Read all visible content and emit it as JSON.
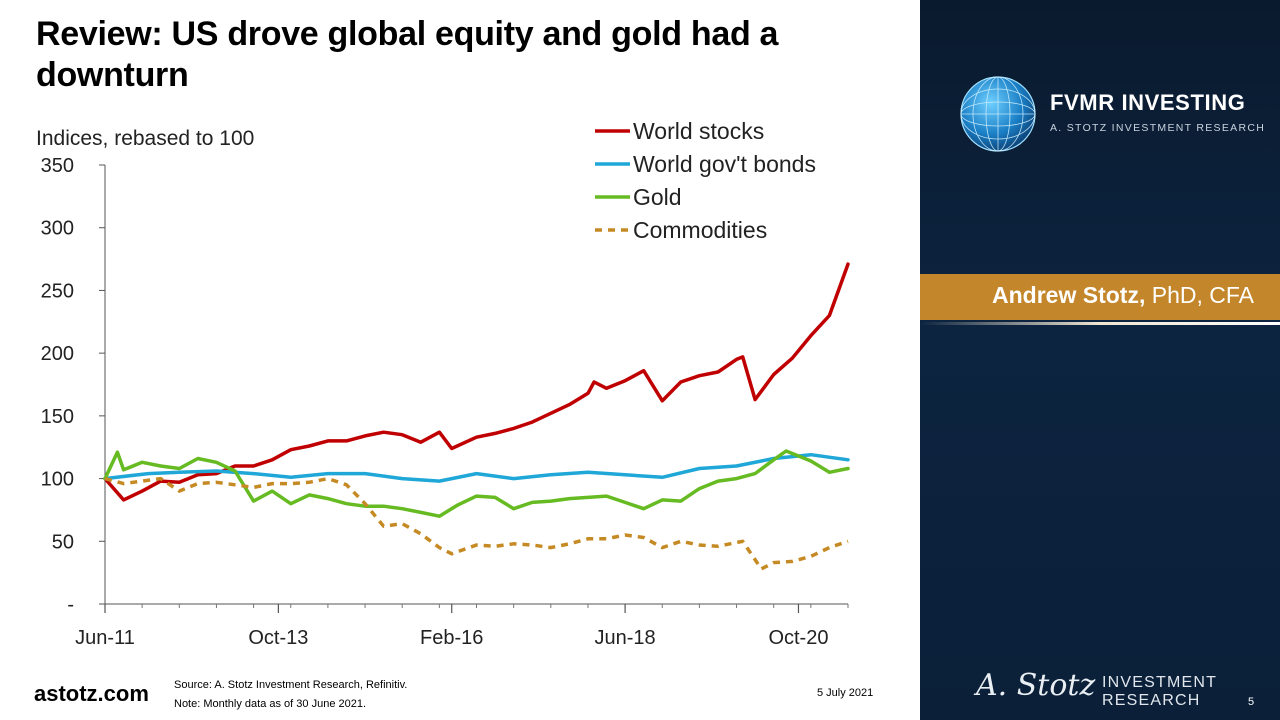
{
  "slide": {
    "title": "Review: US drove global equity and gold had a downturn",
    "website": "astotz.com",
    "source": "Source: A. Stotz Investment Research, Refinitiv.",
    "note": "Note: Monthly data as of 30 June 2021.",
    "date": "5 July 2021",
    "page_number": "5"
  },
  "sidebar": {
    "brand_name": "FVMR INVESTING",
    "brand_sub": "A. STOTZ INVESTMENT RESEARCH",
    "presenter_name": "Andrew Stotz,",
    "presenter_credentials": " PhD, CFA",
    "signature": "A. Stotz",
    "research_line1": "INVESTMENT",
    "research_line2": "RESEARCH"
  },
  "colors": {
    "world_stocks": "#c00000",
    "world_bonds": "#1fa7d8",
    "gold": "#66bb22",
    "commodities": "#c58a23",
    "presenter_band": "#c3862a",
    "sidebar_bg": "#0b1f38"
  },
  "chart_data": {
    "type": "line",
    "ylabel": "Indices, rebased to 100",
    "ylim": [
      0,
      350
    ],
    "yticks": [
      "-",
      "50",
      "100",
      "150",
      "200",
      "250",
      "300",
      "350"
    ],
    "x_start": "2011-06",
    "x_end": "2021-06",
    "xticks": [
      "Jun-11",
      "Oct-13",
      "Feb-16",
      "Jun-18",
      "Oct-20"
    ],
    "legend_position": "top-right",
    "grid": false,
    "series": [
      {
        "name": "World stocks",
        "style": "solid",
        "points": [
          [
            "2011-06",
            100
          ],
          [
            "2011-09",
            83
          ],
          [
            "2011-12",
            90
          ],
          [
            "2012-03",
            98
          ],
          [
            "2012-06",
            97
          ],
          [
            "2012-09",
            103
          ],
          [
            "2012-12",
            104
          ],
          [
            "2013-03",
            110
          ],
          [
            "2013-06",
            110
          ],
          [
            "2013-09",
            115
          ],
          [
            "2013-12",
            123
          ],
          [
            "2014-03",
            126
          ],
          [
            "2014-06",
            130
          ],
          [
            "2014-09",
            130
          ],
          [
            "2014-12",
            134
          ],
          [
            "2015-03",
            137
          ],
          [
            "2015-06",
            135
          ],
          [
            "2015-09",
            129
          ],
          [
            "2015-12",
            137
          ],
          [
            "2016-02",
            124
          ],
          [
            "2016-06",
            133
          ],
          [
            "2016-09",
            136
          ],
          [
            "2016-12",
            140
          ],
          [
            "2017-03",
            145
          ],
          [
            "2017-06",
            152
          ],
          [
            "2017-09",
            159
          ],
          [
            "2017-12",
            168
          ],
          [
            "2018-01",
            177
          ],
          [
            "2018-03",
            172
          ],
          [
            "2018-06",
            178
          ],
          [
            "2018-09",
            186
          ],
          [
            "2018-12",
            162
          ],
          [
            "2019-03",
            177
          ],
          [
            "2019-06",
            182
          ],
          [
            "2019-09",
            185
          ],
          [
            "2019-12",
            195
          ],
          [
            "2020-01",
            197
          ],
          [
            "2020-03",
            163
          ],
          [
            "2020-06",
            183
          ],
          [
            "2020-09",
            196
          ],
          [
            "2020-12",
            214
          ],
          [
            "2021-03",
            230
          ],
          [
            "2021-06",
            271
          ]
        ]
      },
      {
        "name": "World gov't bonds",
        "style": "solid",
        "points": [
          [
            "2011-06",
            100
          ],
          [
            "2012-01",
            104
          ],
          [
            "2012-06",
            105
          ],
          [
            "2012-12",
            106
          ],
          [
            "2013-06",
            104
          ],
          [
            "2013-12",
            101
          ],
          [
            "2014-06",
            104
          ],
          [
            "2014-12",
            104
          ],
          [
            "2015-06",
            100
          ],
          [
            "2015-12",
            98
          ],
          [
            "2016-06",
            104
          ],
          [
            "2016-12",
            100
          ],
          [
            "2017-06",
            103
          ],
          [
            "2017-12",
            105
          ],
          [
            "2018-06",
            103
          ],
          [
            "2018-12",
            101
          ],
          [
            "2019-06",
            108
          ],
          [
            "2019-12",
            110
          ],
          [
            "2020-06",
            116
          ],
          [
            "2020-12",
            119
          ],
          [
            "2021-06",
            115
          ]
        ]
      },
      {
        "name": "Gold",
        "style": "solid",
        "points": [
          [
            "2011-06",
            100
          ],
          [
            "2011-08",
            121
          ],
          [
            "2011-09",
            107
          ],
          [
            "2011-12",
            113
          ],
          [
            "2012-03",
            110
          ],
          [
            "2012-06",
            108
          ],
          [
            "2012-09",
            116
          ],
          [
            "2012-12",
            113
          ],
          [
            "2013-03",
            106
          ],
          [
            "2013-06",
            82
          ],
          [
            "2013-09",
            90
          ],
          [
            "2013-12",
            80
          ],
          [
            "2014-03",
            87
          ],
          [
            "2014-06",
            84
          ],
          [
            "2014-09",
            80
          ],
          [
            "2014-12",
            78
          ],
          [
            "2015-03",
            78
          ],
          [
            "2015-06",
            76
          ],
          [
            "2015-09",
            73
          ],
          [
            "2015-12",
            70
          ],
          [
            "2016-03",
            79
          ],
          [
            "2016-06",
            86
          ],
          [
            "2016-09",
            85
          ],
          [
            "2016-12",
            76
          ],
          [
            "2017-03",
            81
          ],
          [
            "2017-06",
            82
          ],
          [
            "2017-09",
            84
          ],
          [
            "2017-12",
            85
          ],
          [
            "2018-03",
            86
          ],
          [
            "2018-06",
            81
          ],
          [
            "2018-09",
            76
          ],
          [
            "2018-12",
            83
          ],
          [
            "2019-03",
            82
          ],
          [
            "2019-06",
            92
          ],
          [
            "2019-09",
            98
          ],
          [
            "2019-12",
            100
          ],
          [
            "2020-03",
            104
          ],
          [
            "2020-06",
            115
          ],
          [
            "2020-08",
            122
          ],
          [
            "2020-12",
            114
          ],
          [
            "2021-03",
            105
          ],
          [
            "2021-06",
            108
          ]
        ]
      },
      {
        "name": "Commodities",
        "style": "dashed",
        "points": [
          [
            "2011-06",
            100
          ],
          [
            "2011-09",
            96
          ],
          [
            "2011-12",
            98
          ],
          [
            "2012-03",
            100
          ],
          [
            "2012-06",
            90
          ],
          [
            "2012-09",
            96
          ],
          [
            "2012-12",
            97
          ],
          [
            "2013-03",
            95
          ],
          [
            "2013-06",
            93
          ],
          [
            "2013-09",
            96
          ],
          [
            "2013-12",
            96
          ],
          [
            "2014-03",
            97
          ],
          [
            "2014-06",
            100
          ],
          [
            "2014-09",
            95
          ],
          [
            "2014-12",
            80
          ],
          [
            "2015-03",
            62
          ],
          [
            "2015-06",
            64
          ],
          [
            "2015-09",
            56
          ],
          [
            "2015-12",
            45
          ],
          [
            "2016-02",
            40
          ],
          [
            "2016-06",
            47
          ],
          [
            "2016-09",
            46
          ],
          [
            "2016-12",
            48
          ],
          [
            "2017-03",
            47
          ],
          [
            "2017-06",
            45
          ],
          [
            "2017-09",
            48
          ],
          [
            "2017-12",
            52
          ],
          [
            "2018-03",
            52
          ],
          [
            "2018-06",
            55
          ],
          [
            "2018-09",
            53
          ],
          [
            "2018-12",
            45
          ],
          [
            "2019-03",
            50
          ],
          [
            "2019-06",
            47
          ],
          [
            "2019-09",
            46
          ],
          [
            "2019-12",
            49
          ],
          [
            "2020-01",
            50
          ],
          [
            "2020-04",
            28
          ],
          [
            "2020-06",
            33
          ],
          [
            "2020-09",
            34
          ],
          [
            "2020-12",
            38
          ],
          [
            "2021-03",
            45
          ],
          [
            "2021-06",
            50
          ]
        ]
      }
    ]
  }
}
